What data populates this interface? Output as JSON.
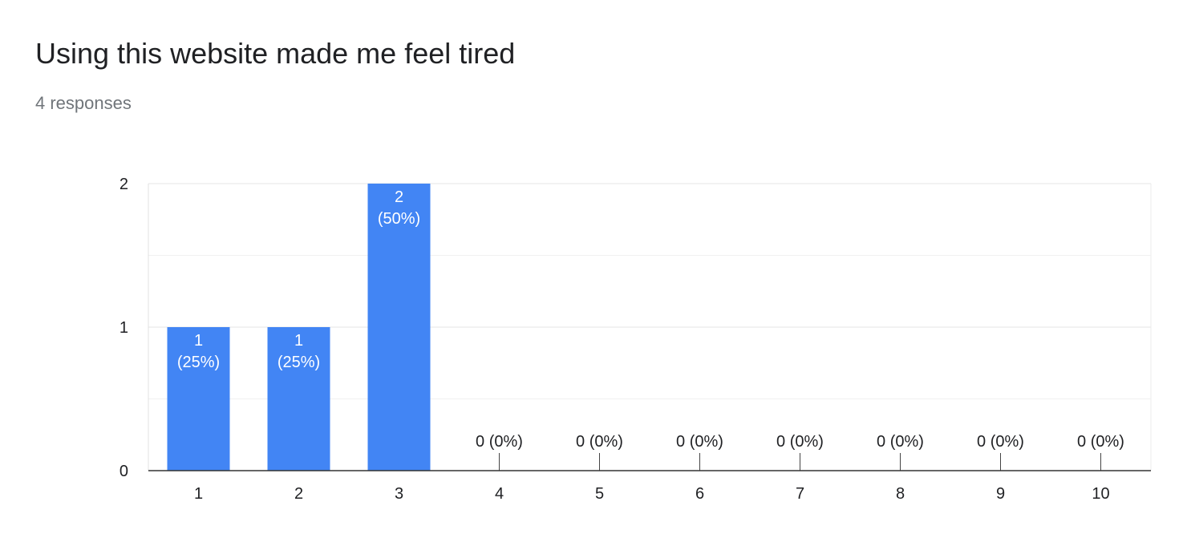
{
  "header": {
    "title": "Using this website made me feel tired",
    "responses": "4 responses"
  },
  "chart_data": {
    "type": "bar",
    "categories": [
      "1",
      "2",
      "3",
      "4",
      "5",
      "6",
      "7",
      "8",
      "9",
      "10"
    ],
    "values": [
      1,
      1,
      2,
      0,
      0,
      0,
      0,
      0,
      0,
      0
    ],
    "data_labels": [
      "1 (25%)",
      "1 (25%)",
      "2 (50%)",
      "0 (0%)",
      "0 (0%)",
      "0 (0%)",
      "0 (0%)",
      "0 (0%)",
      "0 (0%)",
      "0 (0%)"
    ],
    "y_ticks": [
      0,
      1,
      2
    ],
    "ylim": [
      0,
      2
    ],
    "grid": true,
    "bar_color": "#4285f4",
    "label_color_inside": "#ffffff",
    "label_color_outside": "#202124"
  }
}
